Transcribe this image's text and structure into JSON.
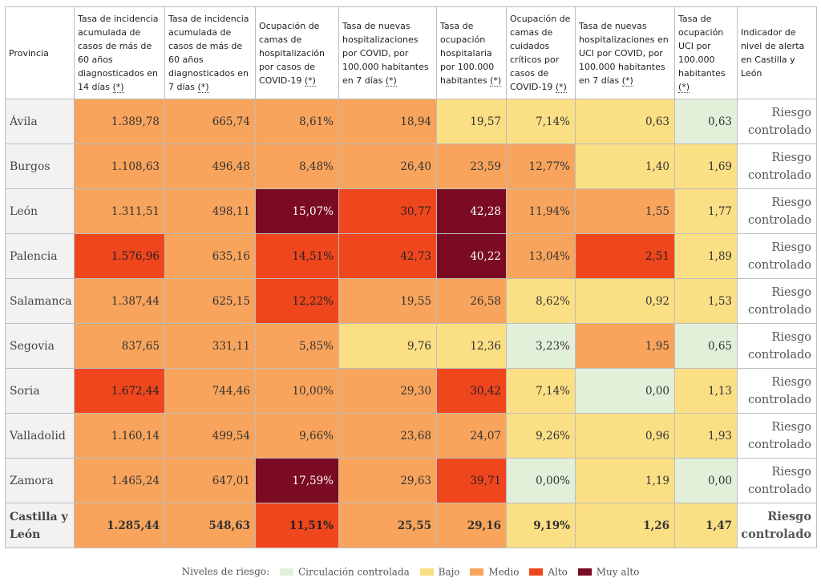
{
  "header": {
    "provincia": "Provincia",
    "col1": "Tasa de incidencia acumulada de casos de más de 60 años diagnosticados en 14 días",
    "col2": "Tasa de incidencia acumulada de casos de más de 60 años diagnosticados en 7 días",
    "col3": "Ocupación de camas de hospitalización por casos de COVID-19",
    "col4": "Tasa de nuevas hospitalizaciones por COVID, por 100.000 habitantes en 7 días",
    "col5": "Tasa de ocupación hospitalaria por 100.000 habitantes",
    "col6": "Ocupación de camas de cuidados críticos por casos de COVID-19",
    "col7": "Tasa de nuevas hospitalizaciones en UCI por COVID, por 100.000 habitantes en 7 días",
    "col8": "Tasa de ocupación UCI por 100.000 habitantes",
    "col9": "Indicador de nivel de alerta en Castilla y León",
    "asterisk": "(*)"
  },
  "rows": [
    {
      "provincia": "Ávila",
      "v1": "1.389,78",
      "v2": "665,74",
      "v3": "8,61%",
      "v4": "18,94",
      "v5": "19,57",
      "v6": "7,14%",
      "v7": "0,63",
      "v8": "0,63",
      "alert": "Riesgo controlado",
      "levels": [
        "m",
        "m",
        "m",
        "m",
        "b",
        "b",
        "b",
        "cc"
      ]
    },
    {
      "provincia": "Burgos",
      "v1": "1.108,63",
      "v2": "496,48",
      "v3": "8,48%",
      "v4": "26,40",
      "v5": "23,59",
      "v6": "12,77%",
      "v7": "1,40",
      "v8": "1,69",
      "alert": "Riesgo controlado",
      "levels": [
        "m",
        "m",
        "m",
        "m",
        "m",
        "m",
        "b",
        "b"
      ]
    },
    {
      "provincia": "León",
      "v1": "1.311,51",
      "v2": "498,11",
      "v3": "15,07%",
      "v4": "30,77",
      "v5": "42,28",
      "v6": "11,94%",
      "v7": "1,55",
      "v8": "1,77",
      "alert": "Riesgo controlado",
      "levels": [
        "m",
        "m",
        "ma",
        "a",
        "ma",
        "m",
        "m",
        "b"
      ]
    },
    {
      "provincia": "Palencia",
      "v1": "1.576,96",
      "v2": "635,16",
      "v3": "14,51%",
      "v4": "42,73",
      "v5": "40,22",
      "v6": "13,04%",
      "v7": "2,51",
      "v8": "1,89",
      "alert": "Riesgo controlado",
      "levels": [
        "a",
        "m",
        "a",
        "a",
        "ma",
        "m",
        "a",
        "b"
      ]
    },
    {
      "provincia": "Salamanca",
      "v1": "1.387,44",
      "v2": "625,15",
      "v3": "12,22%",
      "v4": "19,55",
      "v5": "26,58",
      "v6": "8,62%",
      "v7": "0,92",
      "v8": "1,53",
      "alert": "Riesgo controlado",
      "levels": [
        "m",
        "m",
        "a",
        "m",
        "m",
        "b",
        "b",
        "b"
      ]
    },
    {
      "provincia": "Segovia",
      "v1": "837,65",
      "v2": "331,11",
      "v3": "5,85%",
      "v4": "9,76",
      "v5": "12,36",
      "v6": "3,23%",
      "v7": "1,95",
      "v8": "0,65",
      "alert": "Riesgo controlado",
      "levels": [
        "m",
        "m",
        "m",
        "b",
        "b",
        "cc",
        "m",
        "cc"
      ]
    },
    {
      "provincia": "Soria",
      "v1": "1.672,44",
      "v2": "744,46",
      "v3": "10,00%",
      "v4": "29,30",
      "v5": "30,42",
      "v6": "7,14%",
      "v7": "0,00",
      "v8": "1,13",
      "alert": "Riesgo controlado",
      "levels": [
        "a",
        "m",
        "m",
        "m",
        "a",
        "b",
        "cc",
        "b"
      ]
    },
    {
      "provincia": "Valladolid",
      "v1": "1.160,14",
      "v2": "499,54",
      "v3": "9,66%",
      "v4": "23,68",
      "v5": "24,07",
      "v6": "9,26%",
      "v7": "0,96",
      "v8": "1,93",
      "alert": "Riesgo controlado",
      "levels": [
        "m",
        "m",
        "m",
        "m",
        "m",
        "b",
        "b",
        "b"
      ]
    },
    {
      "provincia": "Zamora",
      "v1": "1.465,24",
      "v2": "647,01",
      "v3": "17,59%",
      "v4": "29,63",
      "v5": "39,71",
      "v6": "0,00%",
      "v7": "1,19",
      "v8": "0,00",
      "alert": "Riesgo controlado",
      "levels": [
        "m",
        "m",
        "ma",
        "m",
        "a",
        "cc",
        "b",
        "cc"
      ]
    }
  ],
  "total": {
    "provincia_line1": "Castilla y",
    "provincia_line2": "León",
    "v1": "1.285,44",
    "v2": "548,63",
    "v3": "11,51%",
    "v4": "25,55",
    "v5": "29,16",
    "v6": "9,19%",
    "v7": "1,26",
    "v8": "1,47",
    "alert": "Riesgo controlado",
    "levels": [
      "m",
      "m",
      "a",
      "m",
      "m",
      "b",
      "b",
      "b"
    ]
  },
  "legend": {
    "title": "Niveles de riesgo:",
    "items": [
      {
        "label": "Circulación controlada",
        "color": "#e2f0d9"
      },
      {
        "label": "Bajo",
        "color": "#fbdf85"
      },
      {
        "label": "Medio",
        "color": "#f8a45c"
      },
      {
        "label": "Alto",
        "color": "#f0461e"
      },
      {
        "label": "Muy alto",
        "color": "#7a0b22"
      }
    ]
  }
}
